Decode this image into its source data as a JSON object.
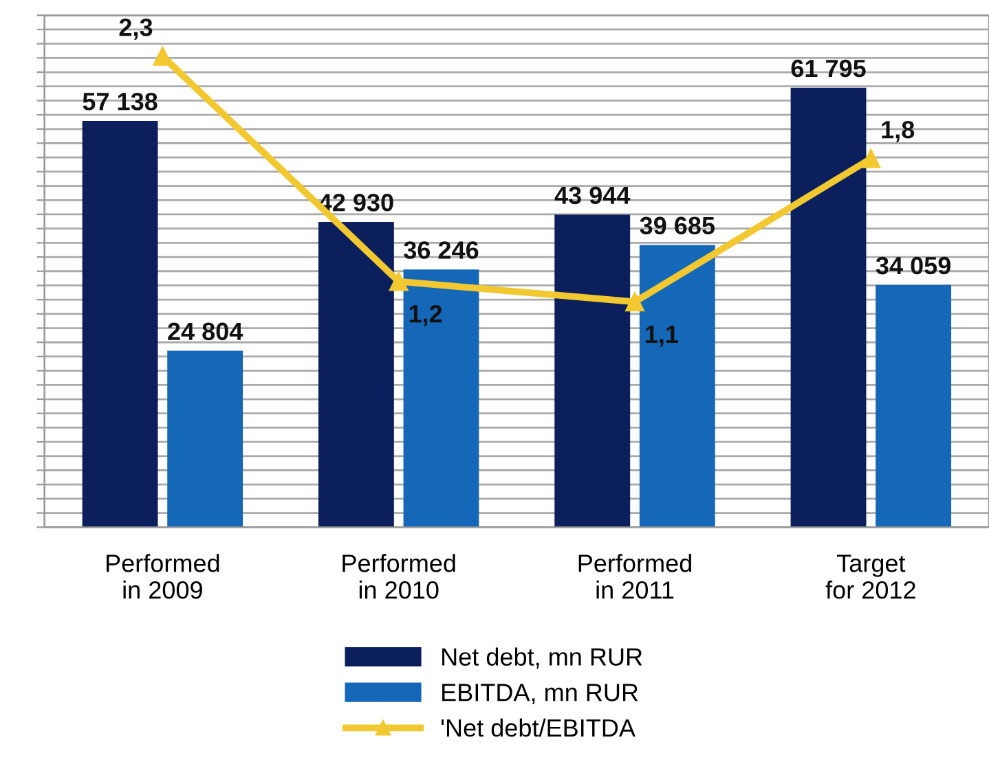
{
  "chart_data": {
    "type": "bar",
    "categories": [
      "Performed\nin 2009",
      "Performed\nin 2010",
      "Performed\nin 2011",
      "Target\nfor 2012"
    ],
    "series": [
      {
        "name": "Net debt, mn RUR",
        "color": "#0b1f5c",
        "values": [
          57138,
          42930,
          43944,
          61795
        ],
        "value_labels": [
          "57 138",
          "42 930",
          "43 944",
          "61 795"
        ]
      },
      {
        "name": "EBITDA, mn RUR",
        "color": "#1567b8",
        "values": [
          24804,
          36246,
          39685,
          34059
        ],
        "value_labels": [
          "24 804",
          "36 246",
          "39 685",
          "34 059"
        ]
      },
      {
        "name": "'Net debt/EBITDA",
        "type": "line",
        "axis": "y2",
        "color": "#f2c831",
        "marker": "triangle",
        "values": [
          2.3,
          1.2,
          1.1,
          1.8
        ],
        "value_labels": [
          "2,3",
          "1,2",
          "1,1",
          "1,8"
        ]
      }
    ],
    "ylim": [
      0,
      72000
    ],
    "yticks": [
      {
        "value": 0,
        "label": null
      },
      {
        "value": 2000,
        "label": null
      },
      {
        "value": 4000,
        "label": null
      },
      {
        "value": 6000,
        "label": null
      },
      {
        "value": 8000,
        "label": null
      },
      {
        "value": 10000,
        "label": null
      },
      {
        "value": 12000,
        "label": null
      },
      {
        "value": 14000,
        "label": null
      },
      {
        "value": 16000,
        "label": null
      },
      {
        "value": 18000,
        "label": null
      },
      {
        "value": 20000,
        "label": null
      },
      {
        "value": 22000,
        "label": null
      },
      {
        "value": 24000,
        "label": null
      },
      {
        "value": 26000,
        "label": null
      },
      {
        "value": 28000,
        "label": null
      },
      {
        "value": 30000,
        "label": null
      },
      {
        "value": 32000,
        "label": null
      },
      {
        "value": 34000,
        "label": null
      },
      {
        "value": 36000,
        "label": null
      },
      {
        "value": 38000,
        "label": null
      },
      {
        "value": 40000,
        "label": null
      },
      {
        "value": 42000,
        "label": null
      },
      {
        "value": 44000,
        "label": null
      },
      {
        "value": 46000,
        "label": null
      },
      {
        "value": 48000,
        "label": null
      },
      {
        "value": 50000,
        "label": null
      },
      {
        "value": 52000,
        "label": null
      },
      {
        "value": 54000,
        "label": null
      },
      {
        "value": 56000,
        "label": null
      },
      {
        "value": 58000,
        "label": null
      },
      {
        "value": 60000,
        "label": null
      },
      {
        "value": 62000,
        "label": null
      },
      {
        "value": 64000,
        "label": null
      },
      {
        "value": 66000,
        "label": null
      },
      {
        "value": 68000,
        "label": null
      },
      {
        "value": 70000,
        "label": null
      },
      {
        "value": 72000,
        "label": null
      }
    ],
    "y2lim": [
      0,
      2.5
    ],
    "tick_labels": "x",
    "grid": "y",
    "legend": "bottom"
  }
}
